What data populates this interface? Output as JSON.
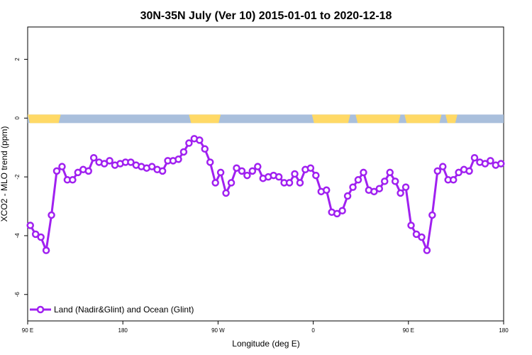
{
  "chart_data": {
    "type": "line",
    "title": "30N-35N July (Ver 10)   2015-01-01 to 2020-12-18",
    "xlabel": "Longitude (deg E)",
    "ylabel": "XCO2 - MLO trend (ppm)",
    "xlim": [
      90,
      450
    ],
    "ylim": [
      -6.9,
      3.1
    ],
    "x_ticks": [
      {
        "value": 90,
        "label": "90 E"
      },
      {
        "value": 162,
        "label": "180"
      },
      {
        "value": 234,
        "label": "90 W"
      },
      {
        "value": 306,
        "label": "0"
      },
      {
        "value": 378,
        "label": "90 E"
      },
      {
        "value": 450,
        "label": "180"
      }
    ],
    "y_ticks": [
      {
        "value": 2,
        "label": "2"
      },
      {
        "value": 0,
        "label": "0"
      },
      {
        "value": -2,
        "label": "-2"
      },
      {
        "value": -4,
        "label": "-4"
      },
      {
        "value": -6,
        "label": "-6"
      }
    ],
    "legend": {
      "position": "bottom-left"
    },
    "series": [
      {
        "name": "Land (Nadir&Glint) and Ocean (Glint)",
        "color": "#a020f0",
        "x": [
          92,
          96,
          100,
          104,
          108,
          112,
          116,
          120,
          124,
          128,
          132,
          136,
          140,
          144,
          148,
          152,
          156,
          160,
          164,
          168,
          172,
          176,
          180,
          184,
          188,
          192,
          196,
          200,
          204,
          208,
          212,
          216,
          220,
          224,
          228,
          232,
          236,
          240,
          244,
          248,
          252,
          256,
          260,
          264,
          268,
          272,
          276,
          280,
          284,
          288,
          292,
          296,
          300,
          304,
          308,
          312,
          316,
          320,
          324,
          328,
          332,
          336,
          340,
          344,
          348,
          352,
          356,
          360,
          364,
          368,
          372,
          376,
          380,
          384,
          388,
          392,
          396,
          400,
          404,
          408,
          412,
          416,
          420,
          424,
          428,
          432,
          436,
          440,
          444,
          448
        ],
        "y": [
          -3.65,
          -3.95,
          -4.05,
          -4.5,
          -3.3,
          -1.8,
          -1.65,
          -2.1,
          -2.1,
          -1.85,
          -1.75,
          -1.8,
          -1.35,
          -1.5,
          -1.55,
          -1.45,
          -1.6,
          -1.55,
          -1.5,
          -1.5,
          -1.6,
          -1.65,
          -1.7,
          -1.65,
          -1.75,
          -1.8,
          -1.45,
          -1.45,
          -1.4,
          -1.15,
          -0.85,
          -0.7,
          -0.75,
          -1.05,
          -1.5,
          -2.2,
          -1.85,
          -2.55,
          -2.2,
          -1.7,
          -1.8,
          -1.95,
          -1.8,
          -1.65,
          -2.05,
          -2.0,
          -1.95,
          -2.0,
          -2.2,
          -2.2,
          -1.9,
          -2.2,
          -1.75,
          -1.7,
          -1.95,
          -2.5,
          -2.45,
          -3.2,
          -3.25,
          -3.15,
          -2.65,
          -2.35,
          -2.1,
          -1.85,
          -2.45,
          -2.5,
          -2.4,
          -2.15,
          -1.85,
          -2.15,
          -2.55,
          -2.35,
          -3.65,
          -3.95,
          -4.05,
          -4.5,
          -3.3,
          -1.8,
          -1.65,
          -2.1,
          -2.1,
          -1.85,
          -1.75,
          -1.8,
          -1.35,
          -1.5,
          -1.55,
          -1.45,
          -1.6,
          -1.55
        ]
      }
    ],
    "land_mask": {
      "y": 0,
      "land_color": "#ffd966",
      "ocean_color": "#a9bfdc",
      "land_ranges": [
        [
          90,
          115
        ],
        [
          212,
          236
        ],
        [
          305,
          334
        ],
        [
          338,
          372
        ],
        [
          375,
          403
        ],
        [
          406,
          415
        ]
      ]
    }
  }
}
